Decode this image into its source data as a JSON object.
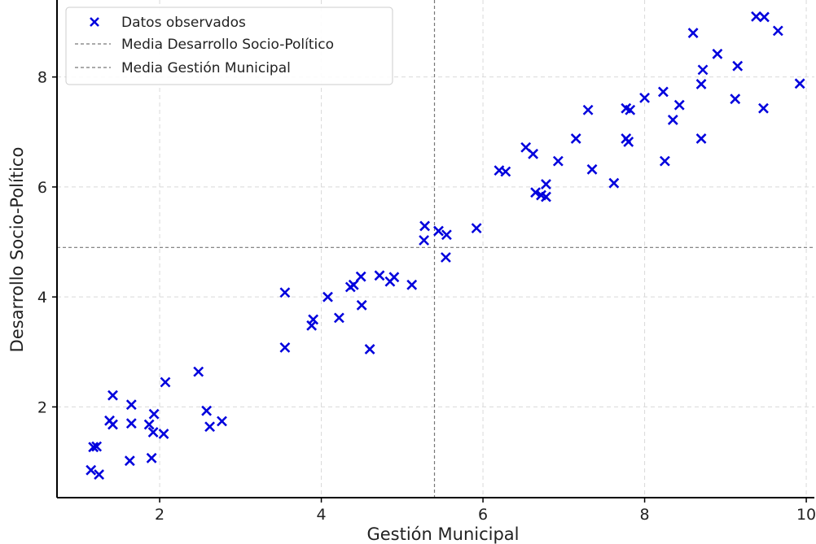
{
  "chart_data": {
    "type": "scatter",
    "title": "",
    "xlabel": "Gestión Municipal",
    "ylabel": "Desarrollo Socio-Político",
    "xlim": [
      0.73,
      10.1
    ],
    "ylim": [
      0.35,
      9.4
    ],
    "xticks": [
      2,
      4,
      6,
      8,
      10
    ],
    "yticks": [
      2,
      4,
      6,
      8
    ],
    "grid": true,
    "legend_position": "top-left",
    "series": [
      {
        "name": "Datos observados",
        "marker": "x",
        "color": "#0000dd",
        "points": [
          [
            1.15,
            0.85
          ],
          [
            1.25,
            0.77
          ],
          [
            1.18,
            1.27
          ],
          [
            1.22,
            1.28
          ],
          [
            1.38,
            1.75
          ],
          [
            1.42,
            1.68
          ],
          [
            1.42,
            2.21
          ],
          [
            1.65,
            2.04
          ],
          [
            1.65,
            1.7
          ],
          [
            1.63,
            1.02
          ],
          [
            1.87,
            1.68
          ],
          [
            1.9,
            1.07
          ],
          [
            1.92,
            1.54
          ],
          [
            1.93,
            1.87
          ],
          [
            2.05,
            1.51
          ],
          [
            2.07,
            2.45
          ],
          [
            2.48,
            2.64
          ],
          [
            2.58,
            1.93
          ],
          [
            2.62,
            1.64
          ],
          [
            2.77,
            1.74
          ],
          [
            3.55,
            4.08
          ],
          [
            3.55,
            3.08
          ],
          [
            3.88,
            3.48
          ],
          [
            3.9,
            3.59
          ],
          [
            4.08,
            4.0
          ],
          [
            4.22,
            3.62
          ],
          [
            4.36,
            4.18
          ],
          [
            4.4,
            4.22
          ],
          [
            4.49,
            4.37
          ],
          [
            4.5,
            3.85
          ],
          [
            4.6,
            3.05
          ],
          [
            4.72,
            4.39
          ],
          [
            4.85,
            4.28
          ],
          [
            4.9,
            4.36
          ],
          [
            5.12,
            4.22
          ],
          [
            5.27,
            5.03
          ],
          [
            5.28,
            5.29
          ],
          [
            5.45,
            5.2
          ],
          [
            5.55,
            5.13
          ],
          [
            5.54,
            4.72
          ],
          [
            5.92,
            5.25
          ],
          [
            6.2,
            6.3
          ],
          [
            6.28,
            6.28
          ],
          [
            6.53,
            6.72
          ],
          [
            6.62,
            6.6
          ],
          [
            6.65,
            5.9
          ],
          [
            6.72,
            5.85
          ],
          [
            6.78,
            6.05
          ],
          [
            6.78,
            5.82
          ],
          [
            6.93,
            6.47
          ],
          [
            7.15,
            6.88
          ],
          [
            7.3,
            7.4
          ],
          [
            7.35,
            6.32
          ],
          [
            7.62,
            6.07
          ],
          [
            7.77,
            7.43
          ],
          [
            7.77,
            6.88
          ],
          [
            7.8,
            6.82
          ],
          [
            7.82,
            7.4
          ],
          [
            8.0,
            7.62
          ],
          [
            8.23,
            7.73
          ],
          [
            8.25,
            6.47
          ],
          [
            8.35,
            7.22
          ],
          [
            8.43,
            7.49
          ],
          [
            8.6,
            8.8
          ],
          [
            8.7,
            7.87
          ],
          [
            8.72,
            8.13
          ],
          [
            8.7,
            6.88
          ],
          [
            8.9,
            8.42
          ],
          [
            9.15,
            8.2
          ],
          [
            9.12,
            7.6
          ],
          [
            9.38,
            9.1
          ],
          [
            9.48,
            9.09
          ],
          [
            9.47,
            7.43
          ],
          [
            9.65,
            8.84
          ],
          [
            9.92,
            7.88
          ]
        ]
      }
    ],
    "reference_lines": [
      {
        "name": "Media Desarrollo Socio-Político",
        "orientation": "horizontal",
        "value": 4.9,
        "style": "dashed",
        "color": "#777777"
      },
      {
        "name": "Media Gestión Municipal",
        "orientation": "vertical",
        "value": 5.4,
        "style": "dashed",
        "color": "#777777"
      }
    ],
    "legend": [
      {
        "label": "Datos observados",
        "kind": "marker"
      },
      {
        "label": "Media Desarrollo Socio-Político",
        "kind": "dashed-line"
      },
      {
        "label": "Media Gestión Municipal",
        "kind": "dashed-line"
      }
    ]
  }
}
